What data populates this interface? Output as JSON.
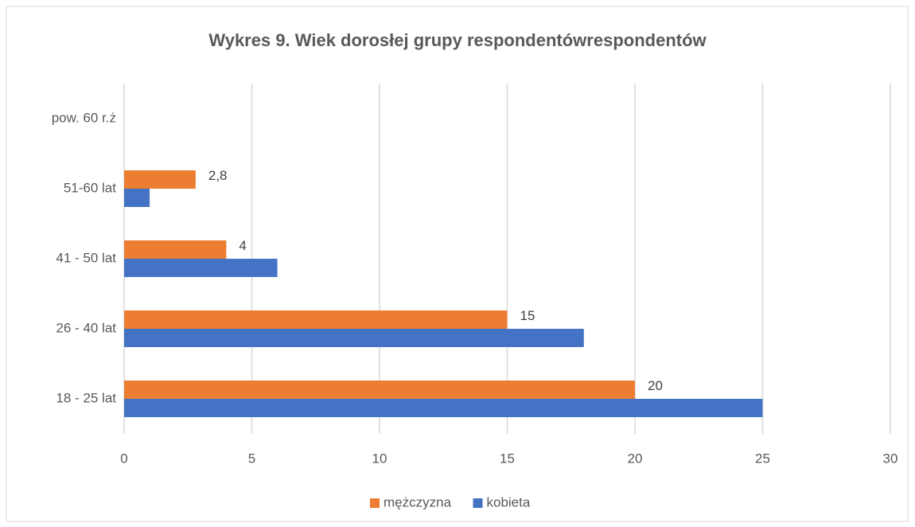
{
  "chart_data": {
    "type": "bar",
    "orientation": "horizontal",
    "title": "Wykres 9. Wiek dorosłej grupy respondentówrespondentów",
    "categories": [
      "pow. 60 r.ż",
      "51-60 lat",
      "41 - 50 lat",
      "26 - 40 lat",
      "18 - 25 lat"
    ],
    "series": [
      {
        "name": "mężczyzna",
        "color": "#ed7d31",
        "values": [
          null,
          2.8,
          4,
          15,
          20
        ],
        "value_labels": [
          null,
          "2,8",
          "4",
          "15",
          "20"
        ]
      },
      {
        "name": "kobieta",
        "color": "#4472c4",
        "values": [
          null,
          1,
          6,
          18,
          25
        ]
      }
    ],
    "xlim": [
      0,
      30
    ],
    "xticks": [
      0,
      5,
      10,
      15,
      20,
      25,
      30
    ],
    "grid": true,
    "legend": "bottom"
  }
}
